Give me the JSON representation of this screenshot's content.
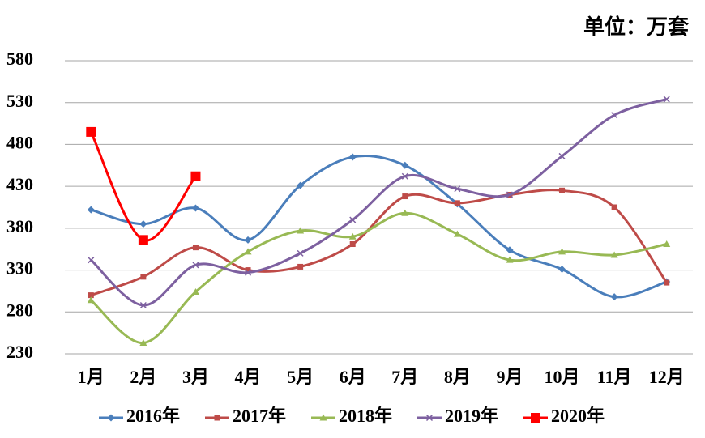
{
  "chart_data": {
    "type": "line",
    "title": "单位：万套",
    "categories": [
      "1月",
      "2月",
      "3月",
      "4月",
      "5月",
      "6月",
      "7月",
      "8月",
      "9月",
      "10月",
      "11月",
      "12月"
    ],
    "series": [
      {
        "name": "2016年",
        "color": "#4a7ebb",
        "marker": "diamond",
        "values": [
          402,
          385,
          404,
          366,
          431,
          465,
          455,
          409,
          354,
          331,
          298,
          316
        ]
      },
      {
        "name": "2017年",
        "color": "#be4b48",
        "marker": "square",
        "values": [
          300,
          322,
          357,
          330,
          334,
          361,
          418,
          410,
          420,
          425,
          405,
          315
        ]
      },
      {
        "name": "2018年",
        "color": "#98b954",
        "marker": "triangle",
        "values": [
          294,
          243,
          304,
          352,
          377,
          370,
          398,
          373,
          342,
          352,
          348,
          361
        ]
      },
      {
        "name": "2019年",
        "color": "#7d60a0",
        "marker": "x",
        "values": [
          342,
          288,
          336,
          327,
          350,
          390,
          442,
          427,
          420,
          466,
          515,
          534
        ]
      },
      {
        "name": "2020年",
        "color": "#ff0000",
        "marker": "bigsquare",
        "values": [
          495,
          366,
          442,
          null,
          null,
          null,
          null,
          null,
          null,
          null,
          null,
          null
        ]
      }
    ],
    "ylim": [
      230,
      580
    ],
    "yticks": [
      230,
      280,
      330,
      380,
      430,
      480,
      530,
      580
    ],
    "grid": true
  }
}
